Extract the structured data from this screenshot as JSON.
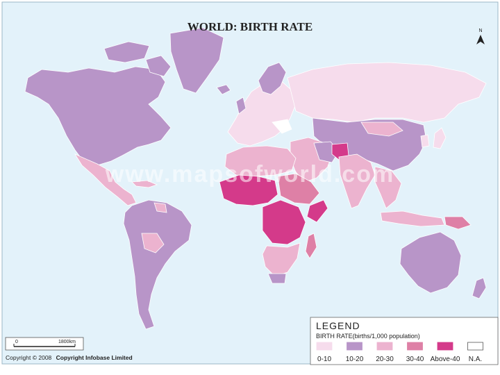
{
  "title": "WORLD: BIRTH RATE",
  "north_label": "N",
  "watermark": "www.mapsofworld.com",
  "copyright": {
    "prefix": "Copyright © 2008",
    "holder": "Copyright Infobase Limited"
  },
  "scale_bar": {
    "start_label": "0",
    "end_label": "1800km"
  },
  "legend": {
    "heading": "LEGEND",
    "subtitle": "BIRTH RATE(births/1,000 population)",
    "items": [
      {
        "label": "0-10",
        "color": "#f6dcec"
      },
      {
        "label": "10-20",
        "color": "#b895c8"
      },
      {
        "label": "20-30",
        "color": "#ecb3cf"
      },
      {
        "label": "30-40",
        "color": "#de80a6"
      },
      {
        "label": "Above-40",
        "color": "#d43a8a"
      },
      {
        "label": "N.A.",
        "color": "#ffffff"
      }
    ]
  },
  "colors": {
    "ocean": "#e3f2fa",
    "border": "#ffffff"
  }
}
